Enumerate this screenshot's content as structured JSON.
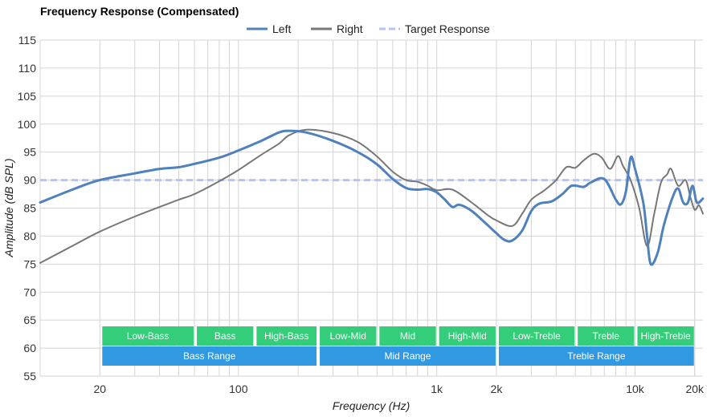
{
  "chart_data": {
    "type": "line",
    "title": "Frequency Response (Compensated)",
    "xlabel": "Frequency (Hz)",
    "ylabel": "Amplitude (dB SPL)",
    "x_scale": "log",
    "xlim": [
      10,
      22000
    ],
    "ylim": [
      55,
      115
    ],
    "y_ticks": [
      55,
      60,
      65,
      70,
      75,
      80,
      85,
      90,
      95,
      100,
      105,
      110,
      115
    ],
    "x_ticks": [
      {
        "value": 20,
        "label": "20"
      },
      {
        "value": 100,
        "label": "100"
      },
      {
        "value": 1000,
        "label": "1k"
      },
      {
        "value": 2000,
        "label": "2k"
      },
      {
        "value": 10000,
        "label": "10k"
      },
      {
        "value": 20000,
        "label": "20k"
      }
    ],
    "legend": [
      {
        "name": "Left",
        "color": "#4f81bd",
        "style": "solid"
      },
      {
        "name": "Right",
        "color": "#777777",
        "style": "solid"
      },
      {
        "name": "Target Response",
        "color": "#b4c4f4",
        "style": "dashed"
      }
    ],
    "series": [
      {
        "name": "Left",
        "color": "#4f81bd",
        "points": [
          [
            10,
            86
          ],
          [
            15,
            88.5
          ],
          [
            20,
            90
          ],
          [
            30,
            91.2
          ],
          [
            40,
            92
          ],
          [
            50,
            92.3
          ],
          [
            60,
            92.9
          ],
          [
            80,
            94
          ],
          [
            100,
            95.3
          ],
          [
            130,
            97
          ],
          [
            160,
            98.5
          ],
          [
            180,
            98.8
          ],
          [
            220,
            98.5
          ],
          [
            300,
            97
          ],
          [
            400,
            95
          ],
          [
            500,
            92.8
          ],
          [
            600,
            90.2
          ],
          [
            700,
            88.6
          ],
          [
            800,
            88.3
          ],
          [
            900,
            88.4
          ],
          [
            1000,
            87.8
          ],
          [
            1100,
            86.5
          ],
          [
            1200,
            85.2
          ],
          [
            1300,
            85.6
          ],
          [
            1500,
            84.5
          ],
          [
            1800,
            82
          ],
          [
            2000,
            80.5
          ],
          [
            2200,
            79.3
          ],
          [
            2400,
            79.2
          ],
          [
            2700,
            81
          ],
          [
            3000,
            84.5
          ],
          [
            3300,
            85.8
          ],
          [
            3800,
            86.2
          ],
          [
            4300,
            87.5
          ],
          [
            4800,
            89
          ],
          [
            5500,
            88.8
          ],
          [
            6000,
            89.6
          ],
          [
            7000,
            90.2
          ],
          [
            8000,
            86.5
          ],
          [
            8500,
            85.7
          ],
          [
            9000,
            88
          ],
          [
            9500,
            94
          ],
          [
            10000,
            92
          ],
          [
            11000,
            86
          ],
          [
            11500,
            80
          ],
          [
            12000,
            75
          ],
          [
            13000,
            77
          ],
          [
            14000,
            82
          ],
          [
            15500,
            87
          ],
          [
            16500,
            88.5
          ],
          [
            17500,
            86
          ],
          [
            18500,
            86
          ],
          [
            19500,
            89
          ],
          [
            20500,
            86
          ],
          [
            22000,
            86.7
          ]
        ]
      },
      {
        "name": "Right",
        "color": "#777777",
        "points": [
          [
            10,
            75.2
          ],
          [
            15,
            78.5
          ],
          [
            20,
            80.8
          ],
          [
            30,
            83.5
          ],
          [
            40,
            85.2
          ],
          [
            50,
            86.5
          ],
          [
            60,
            87.5
          ],
          [
            80,
            89.8
          ],
          [
            100,
            91.8
          ],
          [
            130,
            94.5
          ],
          [
            160,
            96.5
          ],
          [
            180,
            98
          ],
          [
            220,
            99
          ],
          [
            300,
            98.4
          ],
          [
            400,
            96.8
          ],
          [
            500,
            94.2
          ],
          [
            600,
            91.5
          ],
          [
            700,
            90
          ],
          [
            800,
            89.7
          ],
          [
            900,
            89
          ],
          [
            1000,
            88.2
          ],
          [
            1200,
            88.3
          ],
          [
            1500,
            86
          ],
          [
            1800,
            83.8
          ],
          [
            2000,
            82.8
          ],
          [
            2400,
            81.8
          ],
          [
            2700,
            84
          ],
          [
            3000,
            86.5
          ],
          [
            3500,
            88.2
          ],
          [
            4000,
            90
          ],
          [
            4500,
            92.3
          ],
          [
            5000,
            92.2
          ],
          [
            5500,
            93.5
          ],
          [
            6200,
            94.7
          ],
          [
            6800,
            94
          ],
          [
            7500,
            92
          ],
          [
            8200,
            94.3
          ],
          [
            8700,
            92.5
          ],
          [
            9500,
            90
          ],
          [
            10500,
            85
          ],
          [
            11500,
            78.2
          ],
          [
            12500,
            84
          ],
          [
            13500,
            89.5
          ],
          [
            14500,
            91
          ],
          [
            15200,
            92
          ],
          [
            16500,
            89
          ],
          [
            18000,
            90
          ],
          [
            19000,
            87
          ],
          [
            20000,
            84.7
          ],
          [
            21000,
            85.5
          ],
          [
            22000,
            84
          ]
        ]
      },
      {
        "name": "Target Response",
        "color": "#b4c4f4",
        "dashed": true,
        "points": [
          [
            10,
            90
          ],
          [
            22000,
            90
          ]
        ]
      }
    ],
    "bands_top": [
      {
        "label": "Low-Bass",
        "from": 20,
        "to": 60
      },
      {
        "label": "Bass",
        "from": 60,
        "to": 120
      },
      {
        "label": "High-Bass",
        "from": 120,
        "to": 250
      },
      {
        "label": "Low-Mid",
        "from": 250,
        "to": 500
      },
      {
        "label": "Mid",
        "from": 500,
        "to": 1000
      },
      {
        "label": "High-Mid",
        "from": 1000,
        "to": 2000
      },
      {
        "label": "Low-Treble",
        "from": 2000,
        "to": 5000
      },
      {
        "label": "Treble",
        "from": 5000,
        "to": 10000
      },
      {
        "label": "High-Treble",
        "from": 10000,
        "to": 20000
      }
    ],
    "bands_bottom": [
      {
        "label": "Bass Range",
        "from": 20,
        "to": 250
      },
      {
        "label": "Mid Range",
        "from": 250,
        "to": 2000
      },
      {
        "label": "Treble Range",
        "from": 2000,
        "to": 20000
      }
    ],
    "band_colors": {
      "top": "#34cd7a",
      "bottom": "#3199e2"
    }
  }
}
